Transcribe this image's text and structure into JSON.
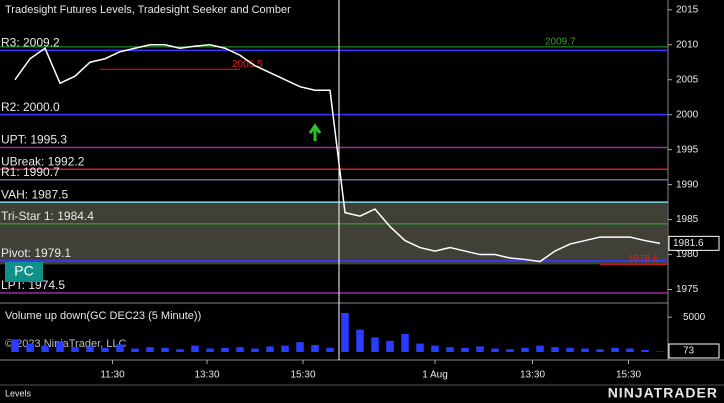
{
  "header": {
    "title": "Tradesight Futures Levels, Tradesight Seeker and Comber",
    "badge": "PC",
    "copyright": "© 2023 NinjaTrader, LLC",
    "tab": "Levels",
    "logo": "NINJATRADER"
  },
  "chart_data": [
    {
      "type": "line",
      "name": "price",
      "color": "#ffffff",
      "values": [
        2005,
        2008,
        2009.5,
        2004.5,
        2005.5,
        2007.5,
        2008,
        2009,
        2009.5,
        2010,
        2010,
        2009.5,
        2009.8,
        2010,
        2009.5,
        2008.5,
        2007,
        2006,
        2005,
        2004,
        2003.5,
        2003.5,
        1986,
        1985.5,
        1986.5,
        1984,
        1982,
        1981,
        1980.5,
        1981,
        1980.5,
        1980,
        1980,
        1979.5,
        1979.3,
        1979,
        1980.5,
        1981.5,
        1982,
        1982.5,
        1982.5,
        1982.5,
        1982,
        1981.6
      ],
      "xlim": [
        0,
        43
      ],
      "xticks": [
        {
          "value": 6.5,
          "label": "11:30"
        },
        {
          "value": 12.8,
          "label": "13:30"
        },
        {
          "value": 19.2,
          "label": "15:30"
        },
        {
          "value": 28,
          "label": "1 Aug"
        },
        {
          "value": 34.5,
          "label": "13:30"
        },
        {
          "value": 40.9,
          "label": "15:30"
        }
      ],
      "ylim": [
        1973.5,
        2016.4
      ],
      "yticks": [
        2015,
        2010,
        2005,
        2000,
        1995,
        1990,
        1985,
        1980,
        1975
      ],
      "last_price": 1981.6,
      "levels": [
        {
          "label": "R3: 2009.2",
          "value": 2009.2,
          "color": "#3a3aff"
        },
        {
          "label": "R2: 2000.0",
          "value": 2000.0,
          "color": "#3a3aff"
        },
        {
          "label": "UPT: 1995.3",
          "value": 1995.3,
          "color": "#9b2f9b"
        },
        {
          "label": "UBreak: 1992.2",
          "value": 1992.2,
          "color": "#d42020"
        },
        {
          "label": "R1: 1990.7",
          "value": 1990.7,
          "color": "#6a6aa8"
        },
        {
          "label": "VAH: 1987.5",
          "value": 1987.5,
          "color": "#7fd8e8"
        },
        {
          "label": "Tri-Star 1: 1984.4",
          "value": 1984.4,
          "color": "#2f8f2f"
        },
        {
          "label": "Pivot: 1979.1",
          "value": 1979.1,
          "color": "#3a3aff"
        },
        {
          "label": "LPT: 1974.5",
          "value": 1974.5,
          "color": "#9b2f9b"
        }
      ],
      "price_labels": [
        {
          "label": "2009.7",
          "value": 2009.7,
          "color": "#2f9f2f"
        },
        {
          "label": "2006.5",
          "value": 2006.5,
          "color": "#e02020"
        },
        {
          "label": "1978.6",
          "value": 1978.6,
          "color": "#e02020"
        }
      ]
    },
    {
      "type": "bar",
      "name": "volume",
      "title": "Volume up down(GC DEC23 (5 Minute))",
      "color": "#2a3cff",
      "values": [
        1800,
        1200,
        900,
        1500,
        700,
        800,
        600,
        1100,
        500,
        700,
        600,
        400,
        900,
        500,
        600,
        700,
        500,
        800,
        900,
        1400,
        1000,
        600,
        5600,
        3200,
        2100,
        1600,
        2600,
        1200,
        900,
        700,
        600,
        800,
        500,
        400,
        600,
        900,
        700,
        600,
        500,
        400,
        600,
        500,
        300,
        73
      ],
      "ylim": [
        0,
        6500
      ],
      "yticks": [
        5000
      ]
    }
  ]
}
